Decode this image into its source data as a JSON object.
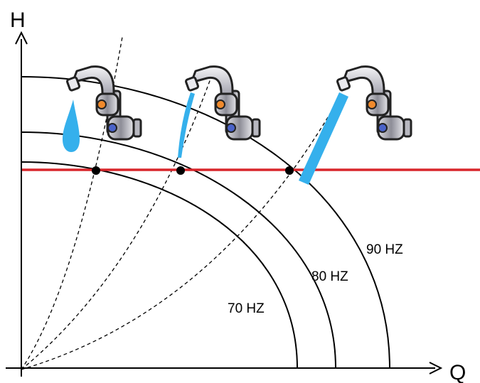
{
  "axes": {
    "y_label": "H",
    "x_label": "Q"
  },
  "curves": [
    {
      "label": "70 HZ"
    },
    {
      "label": "80 HZ"
    },
    {
      "label": "90 HZ"
    }
  ],
  "colors": {
    "operating_line": "#d9262b",
    "water": "#35b0ec",
    "curve": "#000000",
    "system_curve": "#000000"
  },
  "icons": [
    "faucet-icon",
    "faucet-icon",
    "faucet-icon"
  ]
}
